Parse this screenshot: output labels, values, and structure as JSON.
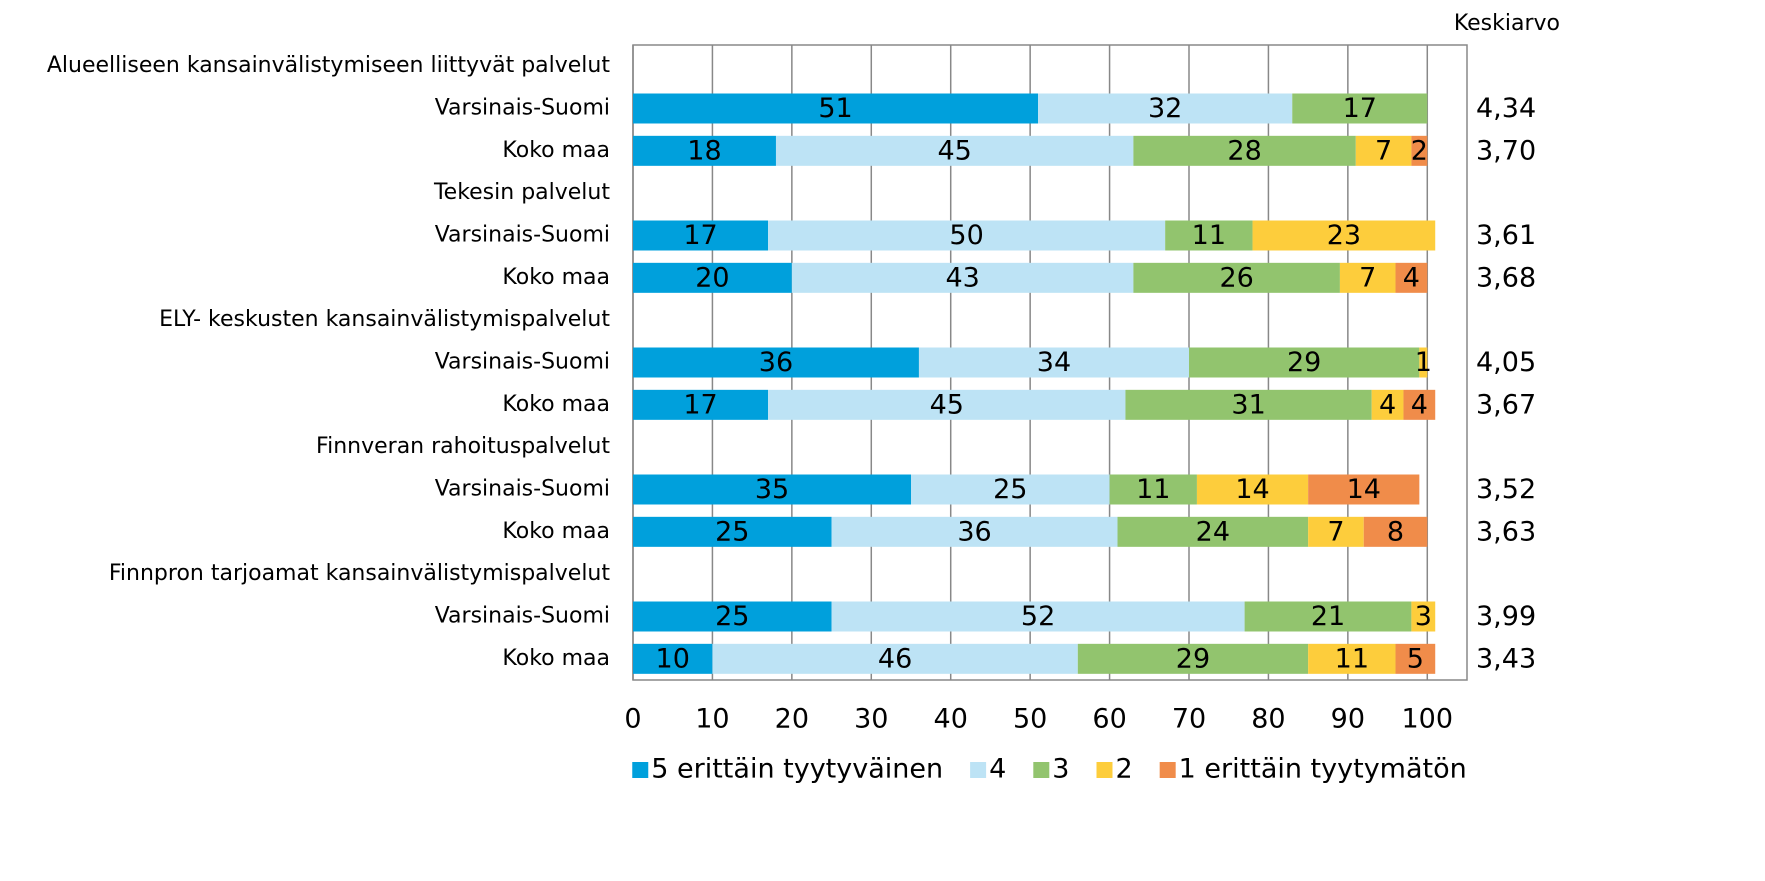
{
  "chart_data": {
    "type": "stacked_barh",
    "categories": [
      "Alueelliseen kansainvälistymiseen liittyvät palvelut",
      "Varsinais-Suomi",
      "Koko maa",
      "Tekesin palvelut",
      "Varsinais-Suomi",
      "Koko maa",
      "ELY- keskusten kansainvälistymispalvelut",
      "Varsinais-Suomi",
      "Koko maa",
      "Finnveran rahoituspalvelut",
      "Varsinais-Suomi",
      "Koko maa",
      "Finnpron tarjoamat kansainvälistymispalvelut",
      "Varsinais-Suomi",
      "Koko maa"
    ],
    "series": [
      {
        "name": "5 erittäin tyytyväinen",
        "color": "#00a0dc",
        "values": [
          null,
          51,
          18,
          null,
          17,
          20,
          null,
          36,
          17,
          null,
          35,
          25,
          null,
          25,
          10
        ]
      },
      {
        "name": "4",
        "color": "#bde3f5",
        "values": [
          null,
          32,
          45,
          null,
          50,
          43,
          null,
          34,
          45,
          null,
          25,
          36,
          null,
          52,
          46
        ]
      },
      {
        "name": "3",
        "color": "#92c46e",
        "values": [
          null,
          17,
          28,
          null,
          11,
          26,
          null,
          29,
          31,
          null,
          11,
          24,
          null,
          21,
          29
        ]
      },
      {
        "name": "2",
        "color": "#fdcd3c",
        "values": [
          null,
          null,
          7,
          null,
          23,
          7,
          null,
          1,
          4,
          null,
          14,
          7,
          null,
          3,
          11
        ]
      },
      {
        "name": "1 erittäin tyytymätön",
        "color": "#f08c4a",
        "values": [
          null,
          null,
          2,
          null,
          null,
          4,
          null,
          null,
          4,
          null,
          14,
          8,
          null,
          null,
          5
        ]
      }
    ],
    "keskiarvo": {
      "title": "Keskiarvo",
      "values": [
        null,
        4.34,
        3.7,
        null,
        3.61,
        3.68,
        null,
        4.05,
        3.67,
        null,
        3.52,
        3.63,
        null,
        3.99,
        3.43
      ],
      "value_labels": [
        null,
        "4,34",
        "3,70",
        null,
        "3,61",
        "3,68",
        null,
        "4,05",
        "3,67",
        null,
        "3,52",
        "3,63",
        null,
        "3,99",
        "3,43"
      ]
    },
    "xlim": [
      0,
      105
    ],
    "xticks": [
      0,
      10,
      20,
      30,
      40,
      50,
      60,
      70,
      80,
      90,
      100
    ],
    "grid": true,
    "legend": "bottom"
  }
}
